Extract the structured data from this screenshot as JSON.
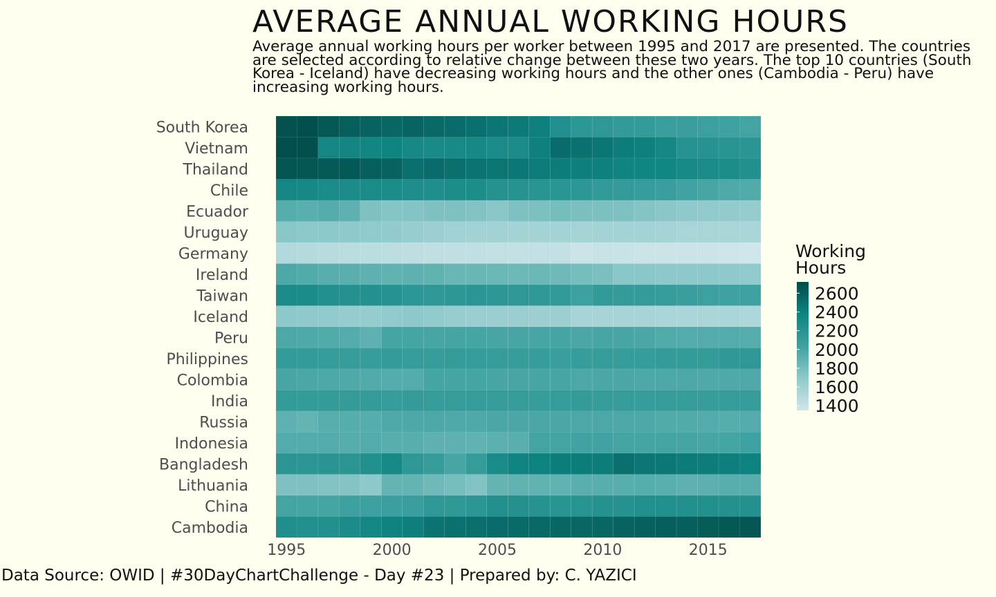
{
  "title": "AVERAGE ANNUAL WORKING HOURS",
  "subtitle": "Average annual working hours per worker between 1995 and 2017 are presented. The countries are selected according to relative change between these two years. The top 10 countries (South Korea - Iceland) have decreasing working hours and the other ones (Cambodia - Peru) have increasing working hours.",
  "footer": "Data Source: OWID | #30DayChartChallenge - Day #23 | Prepared by: C. YAZICI",
  "colors": {
    "low": "#cfe6ea",
    "high": "#014b49",
    "background": "#fffff0"
  },
  "chart_data": {
    "type": "heatmap",
    "years": [
      1995,
      1996,
      1997,
      1998,
      1999,
      2000,
      2001,
      2002,
      2003,
      2004,
      2005,
      2006,
      2007,
      2008,
      2009,
      2010,
      2011,
      2012,
      2013,
      2014,
      2015,
      2016,
      2017
    ],
    "x_ticks": [
      1995,
      2000,
      2005,
      2010,
      2015
    ],
    "countries": [
      "South Korea",
      "Vietnam",
      "Thailand",
      "Chile",
      "Ecuador",
      "Uruguay",
      "Germany",
      "Ireland",
      "Taiwan",
      "Iceland",
      "Peru",
      "Philippines",
      "Colombia",
      "India",
      "Russia",
      "Indonesia",
      "Bangladesh",
      "Lithuania",
      "China",
      "Cambodia"
    ],
    "values": [
      [
        2680,
        2690,
        2640,
        2600,
        2580,
        2560,
        2570,
        2540,
        2520,
        2500,
        2460,
        2440,
        2400,
        2250,
        2160,
        2150,
        2130,
        2120,
        2080,
        2080,
        2060,
        2040,
        2020
      ],
      [
        2700,
        2690,
        2340,
        2350,
        2360,
        2380,
        2330,
        2310,
        2320,
        2330,
        2300,
        2300,
        2400,
        2520,
        2490,
        2460,
        2420,
        2400,
        2340,
        2210,
        2210,
        2200,
        2180
      ],
      [
        2660,
        2650,
        2630,
        2640,
        2600,
        2580,
        2500,
        2520,
        2500,
        2480,
        2470,
        2450,
        2430,
        2420,
        2410,
        2400,
        2380,
        2370,
        2360,
        2320,
        2300,
        2280,
        2240
      ],
      [
        2340,
        2330,
        2300,
        2290,
        2300,
        2290,
        2270,
        2260,
        2280,
        2280,
        2220,
        2210,
        2200,
        2180,
        2160,
        2130,
        2110,
        2100,
        2080,
        2030,
        2000,
        1970,
        1960
      ],
      [
        1940,
        1920,
        1950,
        1900,
        1760,
        1730,
        1740,
        1760,
        1760,
        1750,
        1720,
        1760,
        1770,
        1800,
        1780,
        1770,
        1760,
        1740,
        1710,
        1690,
        1680,
        1670,
        1660
      ],
      [
        1720,
        1700,
        1700,
        1690,
        1680,
        1670,
        1650,
        1620,
        1600,
        1590,
        1590,
        1580,
        1580,
        1580,
        1570,
        1580,
        1580,
        1580,
        1570,
        1550,
        1550,
        1550,
        1540
      ],
      [
        1510,
        1490,
        1480,
        1470,
        1460,
        1450,
        1440,
        1430,
        1430,
        1430,
        1420,
        1420,
        1420,
        1420,
        1380,
        1390,
        1390,
        1380,
        1370,
        1370,
        1370,
        1360,
        1350
      ],
      [
        1980,
        1960,
        1930,
        1920,
        1900,
        1890,
        1900,
        1890,
        1860,
        1860,
        1850,
        1840,
        1850,
        1830,
        1800,
        1780,
        1720,
        1720,
        1700,
        1700,
        1700,
        1690,
        1680
      ],
      [
        2300,
        2290,
        2240,
        2230,
        2230,
        2210,
        2160,
        2150,
        2160,
        2180,
        2160,
        2150,
        2140,
        2130,
        2060,
        2130,
        2110,
        2110,
        2100,
        2080,
        2060,
        2040,
        2040
      ],
      [
        1700,
        1690,
        1680,
        1660,
        1660,
        1680,
        1700,
        1680,
        1650,
        1640,
        1640,
        1640,
        1620,
        1620,
        1560,
        1560,
        1560,
        1560,
        1550,
        1540,
        1540,
        1540,
        1530
      ],
      [
        1980,
        1970,
        1960,
        1950,
        1900,
        2010,
        2010,
        2000,
        2010,
        2010,
        2000,
        2000,
        2000,
        2010,
        1990,
        2000,
        2000,
        1990,
        1960,
        1950,
        1950,
        1950,
        1940
      ],
      [
        2120,
        2110,
        2100,
        2100,
        2090,
        2110,
        2100,
        2100,
        2110,
        2100,
        2100,
        2090,
        2090,
        2080,
        2090,
        2100,
        2100,
        2100,
        2110,
        2120,
        2120,
        2140,
        2150
      ],
      [
        2000,
        1990,
        1980,
        1970,
        1960,
        1950,
        1950,
        2010,
        2010,
        2010,
        2000,
        2000,
        2000,
        2000,
        1980,
        1990,
        1990,
        1980,
        1980,
        1980,
        1970,
        1970,
        1970
      ],
      [
        2120,
        2120,
        2110,
        2110,
        2110,
        2100,
        2110,
        2100,
        2100,
        2100,
        2100,
        2100,
        2090,
        2100,
        2110,
        2100,
        2100,
        2090,
        2100,
        2100,
        2090,
        2100,
        2100
      ],
      [
        1900,
        1880,
        1930,
        1940,
        1940,
        1970,
        1980,
        1980,
        1970,
        1970,
        1990,
        1990,
        1990,
        1990,
        1980,
        1980,
        1980,
        1980,
        1960,
        1960,
        1950,
        1940,
        1950
      ],
      [
        1950,
        1950,
        1950,
        1940,
        1950,
        1930,
        1930,
        1900,
        1900,
        1890,
        1910,
        1920,
        2020,
        2020,
        2030,
        2030,
        2020,
        2010,
        2020,
        2010,
        2000,
        2010,
        2040
      ],
      [
        2180,
        2170,
        2190,
        2180,
        2240,
        2320,
        2150,
        2100,
        2000,
        2100,
        2300,
        2380,
        2390,
        2420,
        2420,
        2420,
        2500,
        2460,
        2450,
        2430,
        2420,
        2410,
        2390
      ],
      [
        1760,
        1760,
        1750,
        1740,
        1700,
        1880,
        1880,
        1830,
        1800,
        1750,
        1880,
        1890,
        1890,
        1890,
        1920,
        1930,
        1930,
        1940,
        1920,
        1900,
        1910,
        1930,
        1930
      ],
      [
        2020,
        2010,
        2010,
        2050,
        2050,
        2070,
        2080,
        2150,
        2140,
        2170,
        2240,
        2230,
        2210,
        2190,
        2200,
        2220,
        2220,
        2250,
        2250,
        2240,
        2240,
        2230,
        2230
      ],
      [
        2260,
        2250,
        2240,
        2290,
        2340,
        2390,
        2410,
        2480,
        2490,
        2510,
        2520,
        2530,
        2540,
        2560,
        2560,
        2560,
        2580,
        2590,
        2600,
        2600,
        2620,
        2640,
        2650
      ]
    ],
    "legend": {
      "title": "Working\nHours",
      "ticks": [
        2600,
        2400,
        2200,
        2000,
        1800,
        1600,
        1400
      ],
      "range": [
        1350,
        2720
      ]
    }
  }
}
